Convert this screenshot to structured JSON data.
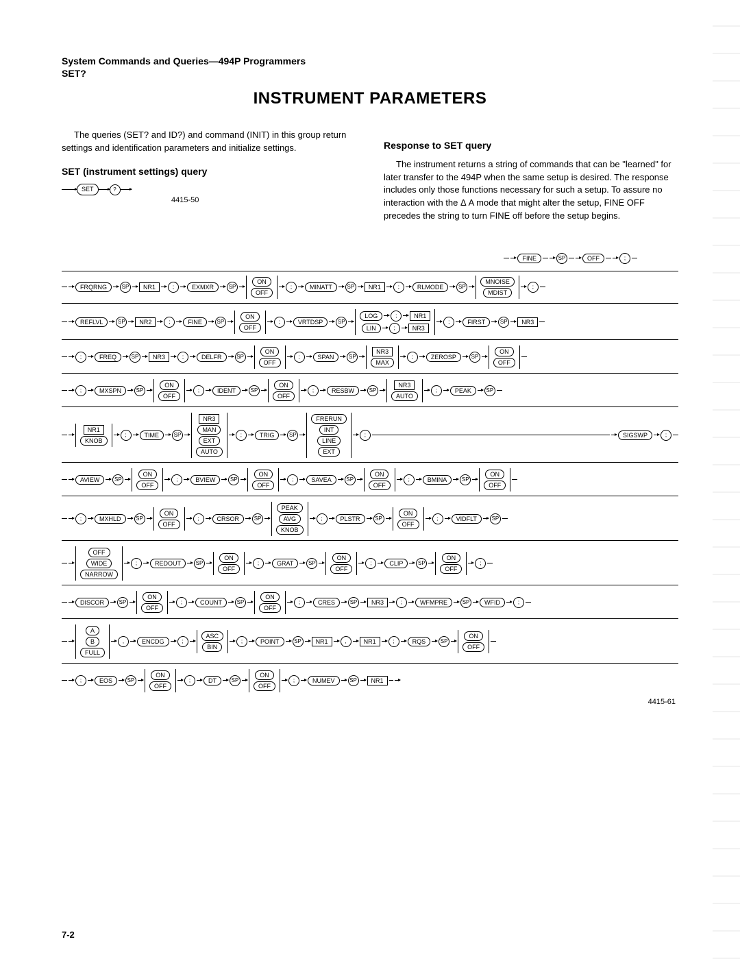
{
  "header": {
    "line1": "System Commands and Queries—494P Programmers",
    "line2": "SET?"
  },
  "title": "INSTRUMENT PARAMETERS",
  "left_col": {
    "para1": "The queries (SET? and ID?) and command (INIT) in this group return settings and identification parameters and initialize settings.",
    "subhead": "SET (instrument settings) query",
    "fig_ref": "4415-50",
    "fig": {
      "set": "SET",
      "q": "?"
    }
  },
  "right_col": {
    "subhead": "Response to SET query",
    "para1": "The instrument returns a string of commands that can be \"learned\" for later transfer to the 494P when the same setup is desired. The response includes only those functions necessary for such a setup. To assure no interaction with the Δ A mode that might alter the setup, FINE OFF precedes the string to turn FINE off before the setup begins."
  },
  "syntax": {
    "row0": {
      "fine": "FINE",
      "off": "OFF"
    },
    "row1": {
      "frqrng": "FRQRNG",
      "nr1": "NR1",
      "exmxr": "EXMXR",
      "on": "ON",
      "off": "OFF",
      "minatt": "MINATT",
      "nr1b": "NR1",
      "rlmode": "RLMODE",
      "mnoise": "MNOISE",
      "mdist": "MDIST"
    },
    "row2": {
      "reflvl": "REFLVL",
      "nr2": "NR2",
      "fine": "FINE",
      "on": "ON",
      "off": "OFF",
      "vrtdsp": "VRTDSP",
      "log": "LOG",
      "nr1": "NR1",
      "lin": "LIN",
      "nr3": "NR3",
      "first": "FIRST",
      "nr3b": "NR3"
    },
    "row3": {
      "freq": "FREQ",
      "nr3": "NR3",
      "delfr": "DELFR",
      "on": "ON",
      "off": "OFF",
      "span": "SPAN",
      "nr3b": "NR3",
      "max": "MAX",
      "zerosp": "ZEROSP",
      "on2": "ON",
      "off2": "OFF"
    },
    "row4": {
      "mxspn": "MXSPN",
      "on": "ON",
      "off": "OFF",
      "ident": "IDENT",
      "on2": "ON",
      "off2": "OFF",
      "resbw": "RESBW",
      "nr3": "NR3",
      "auto": "AUTO",
      "peak": "PEAK"
    },
    "row5": {
      "nr1": "NR1",
      "knob": "KNOB",
      "time": "TIME",
      "nr3": "NR3",
      "man": "MAN",
      "ext": "EXT",
      "auto": "AUTO",
      "trig": "TRIG",
      "frerun": "FRERUN",
      "int": "INT",
      "line": "LINE",
      "ext2": "EXT",
      "sigswp": "SIGSWP"
    },
    "row6": {
      "aview": "AVIEW",
      "on": "ON",
      "off": "OFF",
      "bview": "BVIEW",
      "on2": "ON",
      "off2": "OFF",
      "savea": "SAVEA",
      "on3": "ON",
      "off3": "OFF",
      "bmina": "BMINA",
      "on4": "ON",
      "off4": "OFF"
    },
    "row7": {
      "mxhld": "MXHLD",
      "on": "ON",
      "off": "OFF",
      "crsor": "CRSOR",
      "peak": "PEAK",
      "avg": "AVG",
      "knob": "KNOB",
      "plstr": "PLSTR",
      "on2": "ON",
      "off2": "OFF",
      "vidflt": "VIDFLT"
    },
    "row8": {
      "off": "OFF",
      "wide": "WIDE",
      "narrow": "NARROW",
      "redout": "REDOUT",
      "on": "ON",
      "off2": "OFF",
      "grat": "GRAT",
      "on2": "ON",
      "off3": "OFF",
      "clip": "CLIP",
      "on3": "ON",
      "off4": "OFF"
    },
    "row9": {
      "discor": "DISCOR",
      "on": "ON",
      "off": "OFF",
      "count": "COUNT",
      "on2": "ON",
      "off2": "OFF",
      "cres": "CRES",
      "nr3": "NR3",
      "wfmpre": "WFMPRE",
      "wfid": "WFID"
    },
    "row10": {
      "a": "A",
      "b": "B",
      "full": "FULL",
      "encdg": "ENCDG",
      "asc": "ASC",
      "bin": "BIN",
      "point": "POINT",
      "nr1": "NR1",
      "nr1b": "NR1",
      "rqs": "RQS",
      "on": "ON",
      "off": "OFF"
    },
    "row11": {
      "eos": "EOS",
      "on": "ON",
      "off": "OFF",
      "dt": "DT",
      "on2": "ON",
      "off2": "OFF",
      "numev": "NUMEV",
      "nr1": "NR1"
    },
    "sp": "SP",
    "semi": ";",
    "comma": ","
  },
  "final_ref": "4415-61",
  "page_number": "7-2"
}
